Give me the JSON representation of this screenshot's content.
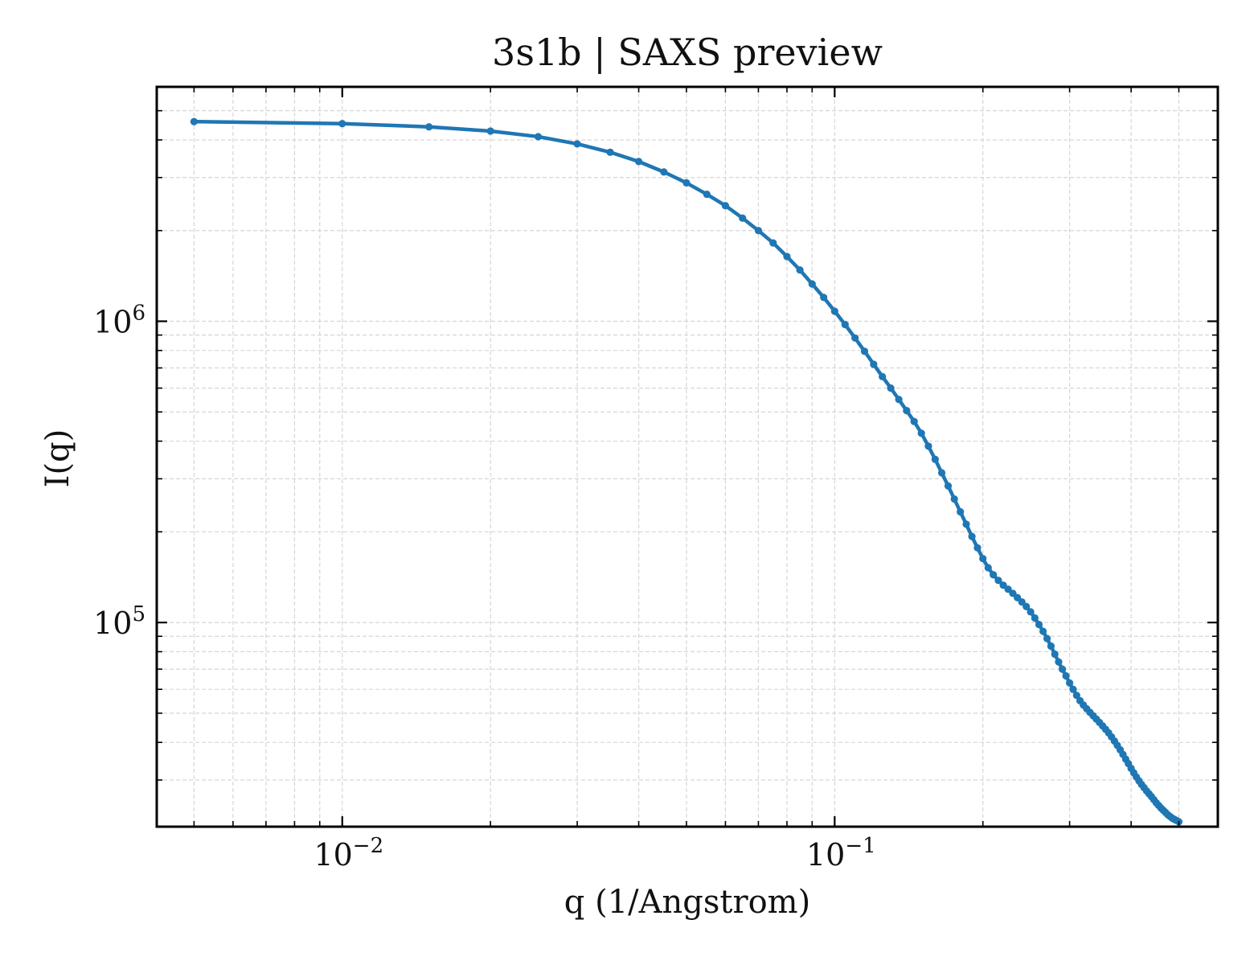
{
  "chart_data": {
    "type": "line",
    "title": "3s1b | SAXS preview",
    "xlabel": "q (1/Angstrom)",
    "ylabel": "I(q)",
    "xscale": "log",
    "yscale": "log",
    "xlim": [
      0.0042,
      0.6
    ],
    "ylim": [
      21000,
      6000000
    ],
    "grid": true,
    "legend": "none",
    "x_ticks": [
      {
        "base": "10",
        "exp": "−2",
        "value": 0.01
      },
      {
        "base": "10",
        "exp": "−1",
        "value": 0.1
      }
    ],
    "y_ticks": [
      {
        "base": "10",
        "exp": "5",
        "value": 100000
      },
      {
        "base": "10",
        "exp": "6",
        "value": 1000000
      }
    ],
    "color": "#1f77b4",
    "series": [
      {
        "x": [
          0.005,
          0.01,
          0.015,
          0.02,
          0.025,
          0.03,
          0.035,
          0.04,
          0.045,
          0.05,
          0.055,
          0.06,
          0.065,
          0.07,
          0.075,
          0.08,
          0.085,
          0.09,
          0.095,
          0.1,
          0.105,
          0.11,
          0.115,
          0.12,
          0.125,
          0.13,
          0.135,
          0.14,
          0.145,
          0.15,
          0.155,
          0.16,
          0.165,
          0.17,
          0.175,
          0.18,
          0.185,
          0.19,
          0.195,
          0.2,
          0.205,
          0.21,
          0.215,
          0.22,
          0.225,
          0.23,
          0.235,
          0.24,
          0.245,
          0.25,
          0.255,
          0.26,
          0.265,
          0.27,
          0.275,
          0.28,
          0.285,
          0.29,
          0.295,
          0.3,
          0.305,
          0.31,
          0.315,
          0.32,
          0.325,
          0.33,
          0.335,
          0.34,
          0.345,
          0.35,
          0.355,
          0.36,
          0.365,
          0.37,
          0.375,
          0.38,
          0.385,
          0.39,
          0.395,
          0.4,
          0.405,
          0.41,
          0.415,
          0.42,
          0.425,
          0.43,
          0.435,
          0.44,
          0.445,
          0.45,
          0.455,
          0.46,
          0.465,
          0.47,
          0.475,
          0.48,
          0.485,
          0.49,
          0.495,
          0.5
        ],
        "y": [
          4600000,
          4530000,
          4420000,
          4280000,
          4100000,
          3880000,
          3640000,
          3390000,
          3130000,
          2880000,
          2640000,
          2420000,
          2200000,
          2000000,
          1820000,
          1640000,
          1480000,
          1330000,
          1200000,
          1080000,
          975000,
          880000,
          795000,
          720000,
          655000,
          600000,
          550000,
          505000,
          465000,
          425000,
          385000,
          348000,
          314000,
          284000,
          257000,
          233000,
          212000,
          193000,
          177000,
          163000,
          152000,
          144000,
          138000,
          133000,
          129000,
          125000,
          121000,
          117000,
          113000,
          108500,
          103500,
          98500,
          93500,
          88500,
          83500,
          78500,
          74000,
          70000,
          66500,
          63000,
          60000,
          57300,
          55000,
          53200,
          51700,
          50300,
          49000,
          47800,
          46600,
          45400,
          44200,
          43000,
          41700,
          40400,
          39100,
          37800,
          36500,
          35200,
          34000,
          32800,
          31700,
          30700,
          29800,
          29000,
          28300,
          27600,
          27000,
          26400,
          25800,
          25200,
          24700,
          24200,
          23800,
          23400,
          23000,
          22700,
          22400,
          22200,
          22000,
          21800
        ]
      }
    ]
  }
}
